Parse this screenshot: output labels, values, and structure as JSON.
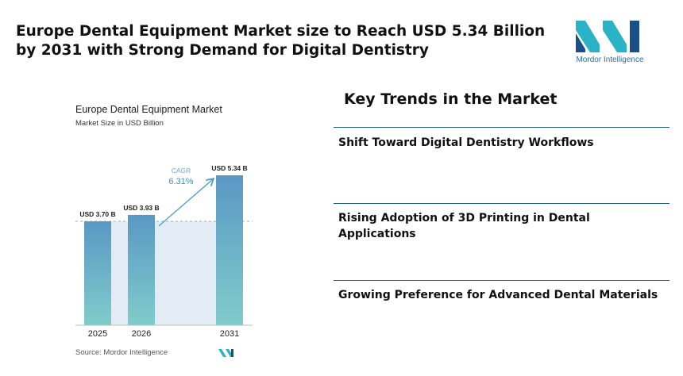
{
  "header": {
    "title": "Europe Dental Equipment Market size to Reach USD 5.34 Billion by 2031 with Strong Demand for Digital Dentistry",
    "logo_text": "Mordor Intelligence"
  },
  "chart_data": {
    "type": "bar",
    "title": "Europe Dental Equipment Market",
    "subtitle": "Market Size in USD Billion",
    "categories": [
      "2025",
      "2026",
      "2031"
    ],
    "values": [
      3.7,
      3.93,
      5.34
    ],
    "value_labels": [
      "USD 3.70 B",
      "USD 3.93 B",
      "USD 5.34 B"
    ],
    "annotation": {
      "label": "CAGR",
      "text": "6.31%"
    },
    "source": "Source: Mordor Intelligence"
  },
  "trends": {
    "title": "Key Trends in the Market",
    "items": [
      "Shift Toward Digital Dentistry Workflows",
      "Rising Adoption of 3D Printing in Dental Applications",
      "Growing Preference for Advanced Dental Materials"
    ]
  }
}
